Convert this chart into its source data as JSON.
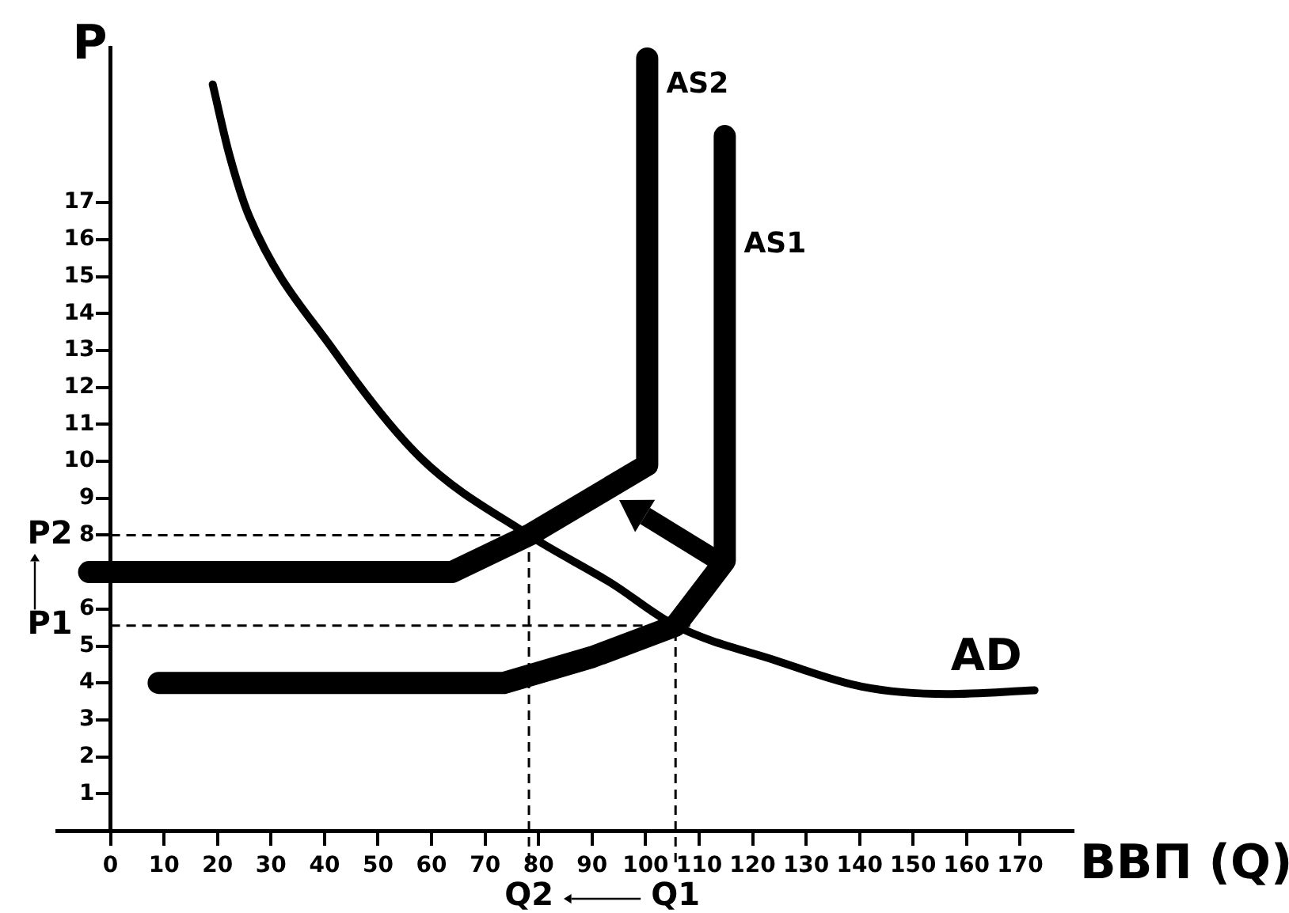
{
  "chart_data": {
    "type": "line",
    "xlabel": "ВВП (Q)",
    "ylabel": "P",
    "xlim": [
      -10,
      180
    ],
    "ylim": [
      0,
      21.2
    ],
    "xticks": [
      0,
      10,
      20,
      30,
      40,
      50,
      60,
      70,
      80,
      90,
      100,
      110,
      120,
      130,
      140,
      150,
      160,
      170
    ],
    "yticks": [
      1,
      2,
      3,
      4,
      5,
      6,
      {
        "value": 7,
        "label": null
      },
      8,
      9,
      10,
      11,
      12,
      13,
      14,
      15,
      16,
      17
    ],
    "series": [
      {
        "name": "AS2",
        "color": "#000000",
        "x": [
          -4,
          63.8,
          78.2,
          100.3,
          100.3
        ],
        "values": [
          7,
          7,
          8,
          9.9,
          20.9
        ]
      },
      {
        "name": "AS1",
        "color": "#000000",
        "x": [
          9,
          73.5,
          90,
          105.6,
          114.8,
          114.8
        ],
        "values": [
          4,
          4,
          4.7,
          5.55,
          7.3,
          18.8
        ]
      },
      {
        "name": "AD",
        "color": "#000000",
        "x": [
          19.1,
          22.2,
          26,
          41.7,
          57.9,
          78.2,
          93.6,
          105.6,
          124.5,
          140.4,
          156.3,
          172.7
        ],
        "values": [
          20.2,
          18.3,
          16.6,
          13,
          10.1,
          8,
          6.7,
          5.55,
          4.6,
          3.9,
          3.7,
          3.8
        ]
      }
    ],
    "ref_lines": [
      {
        "axis": "y",
        "value": 8,
        "label": "P2",
        "line_style": "dashed"
      },
      {
        "axis": "x",
        "value": 78.2,
        "label": "Q2",
        "line_style": "dashed"
      },
      {
        "axis": "y",
        "value": 5.55,
        "label": "P1",
        "line_style": "dashed"
      },
      {
        "axis": "x",
        "value": 105.6,
        "label": "Q1",
        "line_style": "dashed"
      }
    ],
    "grid": false,
    "legend": false,
    "marker": "none",
    "line_style": "solid"
  }
}
